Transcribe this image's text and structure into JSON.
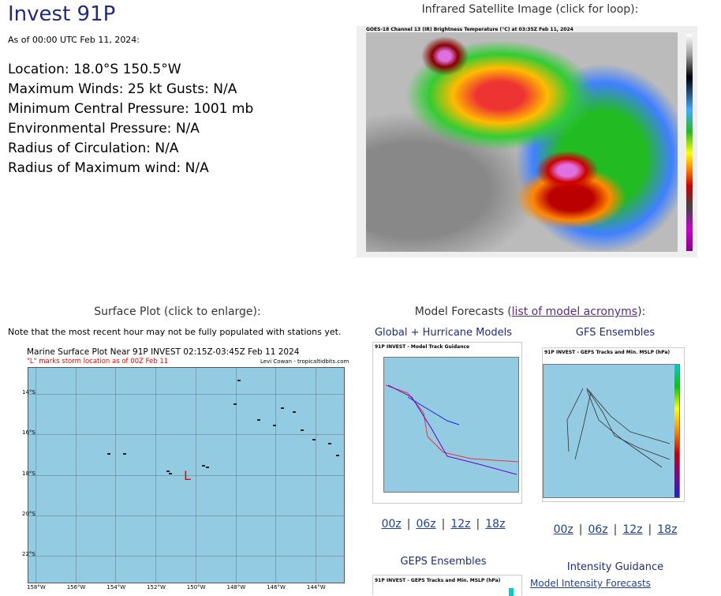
{
  "header": {
    "title": "Invest 91P",
    "as_of": "As of 00:00 UTC Feb 11, 2024:"
  },
  "details": [
    "Location: 18.0°S 150.5°W",
    "Maximum Winds: 25 kt  Gusts: N/A",
    "Minimum Central Pressure: 1001 mb",
    "Environmental Pressure: N/A",
    "Radius of Circulation: N/A",
    "Radius of Maximum wind: N/A"
  ],
  "satellite": {
    "heading": "Infrared Satellite Image (click for loop):",
    "image_title": "GOES-18 Channel 13 (IR) Brightness Temperature (°C) at 03:35Z Feb 11, 2024"
  },
  "surface": {
    "heading": "Surface Plot (click to enlarge):",
    "note": "Note that the most recent hour may not be fully populated with stations yet.",
    "plot_title": "Marine Surface Plot Near 91P INVEST 02:15Z-03:45Z Feb 11 2024",
    "plot_subtitle": "\"L\" marks storm location as of 00Z Feb 11",
    "credit": "Levi Cowan - tropicaltidbits.com",
    "storm_marker": "L",
    "lat_labels": [
      "14°S",
      "16°S",
      "18°S",
      "20°S",
      "22°S"
    ],
    "lon_labels": [
      "158°W",
      "156°W",
      "154°W",
      "152°W",
      "150°W",
      "148°W",
      "146°W",
      "144°W"
    ]
  },
  "models": {
    "heading_prefix": "Model Forecasts (",
    "heading_link": "list of model acronyms",
    "heading_suffix": "):",
    "separator": "|",
    "sections": [
      {
        "title": "Global + Hurricane Models",
        "image_title": "91P INVEST - Model Track Guidance",
        "links": [
          "00z",
          "06z",
          "12z",
          "18z"
        ]
      },
      {
        "title": "GFS Ensembles",
        "image_title": "91P INVEST - GEFS Tracks and Min. MSLP (hPa)",
        "links": [
          "00z",
          "06z",
          "12z",
          "18z"
        ]
      }
    ]
  },
  "geps": {
    "title": "GEPS Ensembles",
    "image_title": "91P INVEST - GEPS Tracks and Min. MSLP (hPa)"
  },
  "intensity": {
    "title": "Intensity Guidance",
    "link": "Model Intensity Forecasts"
  }
}
